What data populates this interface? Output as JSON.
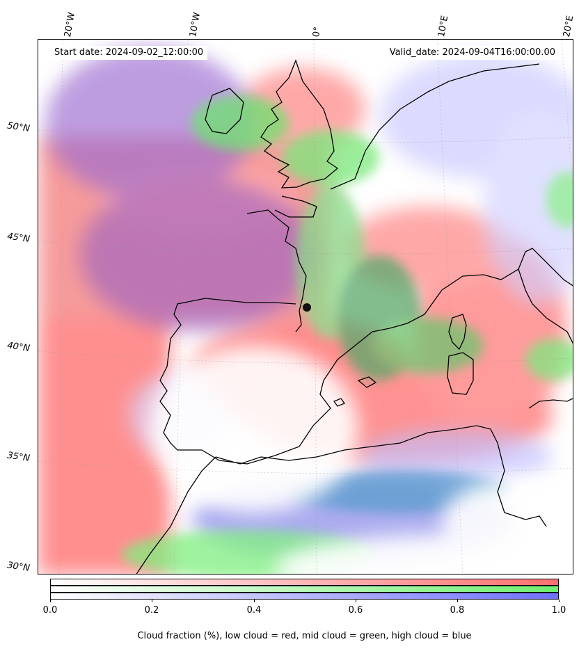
{
  "annotations": {
    "start_date": "Start date: 2024-09-02_12:00:00",
    "valid_date": "Valid_date: 2024-09-04T16:00:00.00"
  },
  "longitude_labels": [
    "20°W",
    "10°W",
    "0°",
    "10°E",
    "20°E"
  ],
  "latitude_labels": [
    "50°N",
    "45°N",
    "40°N",
    "35°N",
    "30°N"
  ],
  "colorbar": {
    "ticks": [
      "0.0",
      "0.2",
      "0.4",
      "0.6",
      "0.8",
      "1.0"
    ],
    "caption": "Cloud fraction (%), low cloud = red, mid cloud = green, high cloud = blue",
    "colors": {
      "low": "#ff7070",
      "mid": "#70f070",
      "high": "#7070ff"
    }
  },
  "map": {
    "colors": {
      "land_outline": "#000000",
      "low_cloud": "#ff6b6b",
      "mid_cloud": "#6be86b",
      "high_cloud": "#6a6ae8"
    }
  }
}
